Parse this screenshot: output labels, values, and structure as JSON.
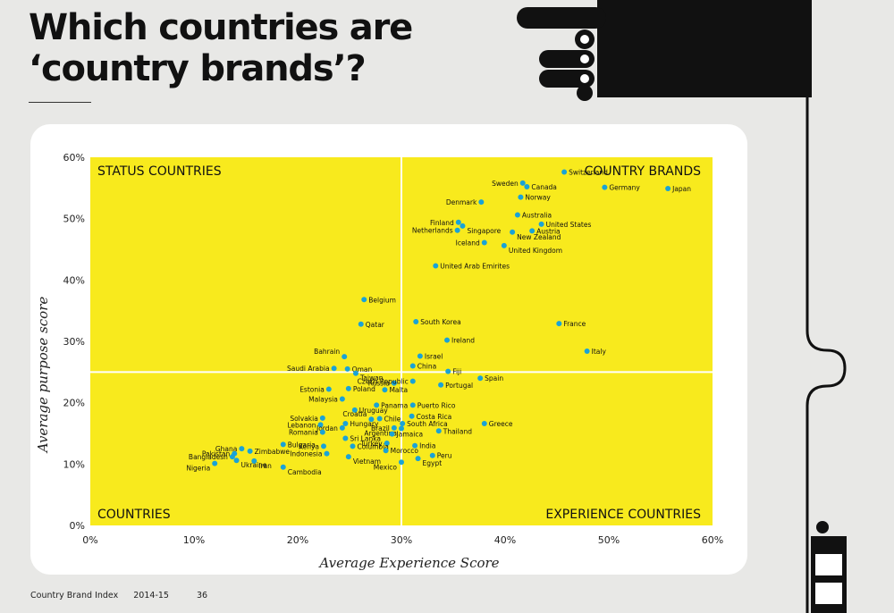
{
  "title_line1": "Which countries are",
  "title_line2": "‘country brands’?",
  "footer": {
    "publication": "Country Brand Index",
    "edition": "2014-15",
    "page": "36"
  },
  "colors": {
    "background": "#e8e8e6",
    "plot": "#f8ea1d",
    "dot": "#1aa3d6",
    "ink": "#111111"
  },
  "chart_data": {
    "type": "scatter",
    "xlabel": "Average Experience Score",
    "ylabel": "Average purpose score",
    "xlim": [
      0,
      60
    ],
    "ylim": [
      0,
      60
    ],
    "xticks": [
      "0%",
      "10%",
      "20%",
      "30%",
      "40%",
      "50%",
      "60%"
    ],
    "yticks": [
      "0%",
      "10%",
      "20%",
      "30%",
      "40%",
      "50%",
      "60%"
    ],
    "dividers": {
      "x": 30,
      "y": 25
    },
    "quadrants": {
      "top_left": "STATUS COUNTRIES",
      "top_right": "COUNTRY BRANDS",
      "bottom_left": "COUNTRIES",
      "bottom_right": "EXPERIENCE COUNTRIES"
    },
    "points": [
      {
        "name": "Switzerland",
        "x": 45.7,
        "y": 57.6
      },
      {
        "name": "Sweden",
        "x": 41.7,
        "y": 55.8
      },
      {
        "name": "Canada",
        "x": 42.1,
        "y": 55.2
      },
      {
        "name": "Germany",
        "x": 49.6,
        "y": 55.1
      },
      {
        "name": "Japan",
        "x": 55.7,
        "y": 54.9
      },
      {
        "name": "Norway",
        "x": 41.5,
        "y": 53.5
      },
      {
        "name": "Denmark",
        "x": 37.7,
        "y": 52.7
      },
      {
        "name": "Australia",
        "x": 41.2,
        "y": 50.6
      },
      {
        "name": "Finland",
        "x": 35.5,
        "y": 49.4
      },
      {
        "name": "Singapore",
        "x": 35.9,
        "y": 48.8
      },
      {
        "name": "United States",
        "x": 43.5,
        "y": 49.1
      },
      {
        "name": "Netherlands",
        "x": 35.4,
        "y": 48.1
      },
      {
        "name": "Austria",
        "x": 42.6,
        "y": 48.0
      },
      {
        "name": "New Zealand",
        "x": 40.7,
        "y": 47.8
      },
      {
        "name": "Iceland",
        "x": 38.0,
        "y": 46.1
      },
      {
        "name": "United Kingdom",
        "x": 39.9,
        "y": 45.6
      },
      {
        "name": "United Arab Emirites",
        "x": 33.3,
        "y": 42.3
      },
      {
        "name": "Belgium",
        "x": 26.4,
        "y": 36.8
      },
      {
        "name": "South Korea",
        "x": 31.4,
        "y": 33.2
      },
      {
        "name": "France",
        "x": 45.2,
        "y": 32.9
      },
      {
        "name": "Qatar",
        "x": 26.1,
        "y": 32.8
      },
      {
        "name": "Ireland",
        "x": 34.4,
        "y": 30.2
      },
      {
        "name": "Italy",
        "x": 47.9,
        "y": 28.4
      },
      {
        "name": "Bahrain",
        "x": 24.5,
        "y": 27.5
      },
      {
        "name": "Israel",
        "x": 31.8,
        "y": 27.6
      },
      {
        "name": "China",
        "x": 31.1,
        "y": 26.0
      },
      {
        "name": "Saudi Arabia",
        "x": 23.5,
        "y": 25.6
      },
      {
        "name": "Oman",
        "x": 24.8,
        "y": 25.5
      },
      {
        "name": "Fiji",
        "x": 34.5,
        "y": 25.1
      },
      {
        "name": "Taiwan",
        "x": 25.6,
        "y": 24.8
      },
      {
        "name": "Russia",
        "x": 29.3,
        "y": 23.2
      },
      {
        "name": "Czech Republic",
        "x": 31.1,
        "y": 23.5
      },
      {
        "name": "Spain",
        "x": 37.6,
        "y": 24.0
      },
      {
        "name": "Portugal",
        "x": 33.8,
        "y": 22.9
      },
      {
        "name": "Estonia",
        "x": 23.0,
        "y": 22.2
      },
      {
        "name": "Poland",
        "x": 24.9,
        "y": 22.3
      },
      {
        "name": "Malta",
        "x": 28.4,
        "y": 22.1
      },
      {
        "name": "Malaysia",
        "x": 24.3,
        "y": 20.6
      },
      {
        "name": "Panama",
        "x": 27.6,
        "y": 19.6
      },
      {
        "name": "Puerto Rico",
        "x": 31.1,
        "y": 19.6
      },
      {
        "name": "Uruguay",
        "x": 25.5,
        "y": 18.8
      },
      {
        "name": "Solvakia",
        "x": 22.4,
        "y": 17.5
      },
      {
        "name": "Costa Rica",
        "x": 31.0,
        "y": 17.8
      },
      {
        "name": "Croatia",
        "x": 27.1,
        "y": 17.3
      },
      {
        "name": "Chile",
        "x": 27.9,
        "y": 17.4
      },
      {
        "name": "Lebanon",
        "x": 22.2,
        "y": 16.4
      },
      {
        "name": "Hungary",
        "x": 24.6,
        "y": 16.6
      },
      {
        "name": "South Africa",
        "x": 30.1,
        "y": 16.6
      },
      {
        "name": "Greece",
        "x": 38.0,
        "y": 16.6
      },
      {
        "name": "Jordan",
        "x": 24.3,
        "y": 15.9
      },
      {
        "name": "Brazil",
        "x": 29.3,
        "y": 15.9
      },
      {
        "name": "Argentina",
        "x": 30.0,
        "y": 15.8
      },
      {
        "name": "Romania",
        "x": 22.4,
        "y": 15.2
      },
      {
        "name": "Thailand",
        "x": 33.6,
        "y": 15.4
      },
      {
        "name": "Jamaica",
        "x": 29.1,
        "y": 14.9
      },
      {
        "name": "Sri Lanka",
        "x": 24.6,
        "y": 14.2
      },
      {
        "name": "Turkey",
        "x": 28.6,
        "y": 13.4
      },
      {
        "name": "Bulgaria",
        "x": 18.6,
        "y": 13.2
      },
      {
        "name": "Kenya",
        "x": 22.5,
        "y": 12.9
      },
      {
        "name": "Columbia",
        "x": 25.3,
        "y": 12.9
      },
      {
        "name": "India",
        "x": 31.3,
        "y": 13.0
      },
      {
        "name": "Ghana",
        "x": 14.6,
        "y": 12.5
      },
      {
        "name": "Zimbabwe",
        "x": 15.4,
        "y": 12.1
      },
      {
        "name": "Morocco",
        "x": 28.5,
        "y": 12.2
      },
      {
        "name": "Pakistan",
        "x": 13.9,
        "y": 11.7
      },
      {
        "name": "Bangladesh",
        "x": 13.7,
        "y": 11.2
      },
      {
        "name": "Indonesia",
        "x": 22.8,
        "y": 11.7
      },
      {
        "name": "Vietnam",
        "x": 24.9,
        "y": 11.2
      },
      {
        "name": "Peru",
        "x": 33.0,
        "y": 11.4
      },
      {
        "name": "Ukraine",
        "x": 14.1,
        "y": 10.6
      },
      {
        "name": "Iran",
        "x": 15.8,
        "y": 10.5
      },
      {
        "name": "Egypt",
        "x": 31.6,
        "y": 10.9
      },
      {
        "name": "Nigeria",
        "x": 12.0,
        "y": 10.1
      },
      {
        "name": "Mexico",
        "x": 30.0,
        "y": 10.3
      },
      {
        "name": "Cambodia",
        "x": 18.6,
        "y": 9.5
      }
    ]
  }
}
